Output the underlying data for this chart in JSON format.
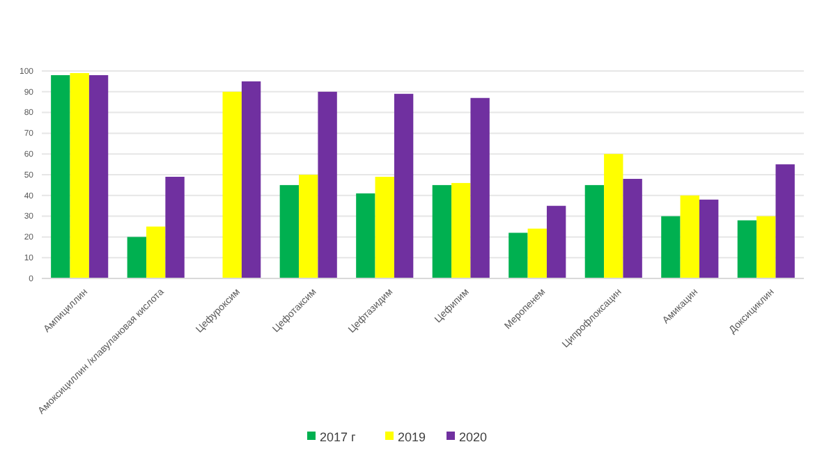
{
  "chart_data": {
    "type": "bar",
    "categories": [
      "Ампициллин",
      "Амоксициллин /клавулановая кислота",
      "Цефуроксим",
      "Цефотаксим",
      "Цефтазидим",
      "Цефипим",
      "Меропенем",
      "Ципрофлоксацин",
      "Амикацин",
      "Доксициклин"
    ],
    "series": [
      {
        "name": "2017 г",
        "color": "#00b050",
        "values": [
          98,
          20,
          null,
          45,
          41,
          45,
          22,
          45,
          30,
          28
        ]
      },
      {
        "name": "2019",
        "color": "#ffff00",
        "values": [
          99,
          25,
          90,
          50,
          49,
          46,
          24,
          60,
          40,
          30
        ]
      },
      {
        "name": "2020",
        "color": "#7030a0",
        "values": [
          98,
          49,
          95,
          90,
          89,
          87,
          35,
          48,
          38,
          55
        ]
      }
    ],
    "ylim": [
      0,
      100
    ],
    "yticks": [
      0,
      10,
      20,
      30,
      40,
      50,
      60,
      70,
      80,
      90,
      100
    ],
    "grid": "y",
    "legend": "bottom"
  }
}
